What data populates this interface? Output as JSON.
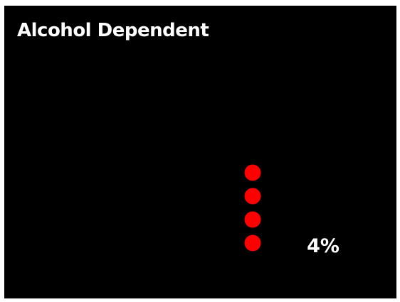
{
  "slide": {
    "title": "Alcohol Dependent",
    "background_color": "#000000",
    "text_color": "#ffffff"
  },
  "chart_data": {
    "type": "dot",
    "title": "Alcohol Dependent",
    "categories": [
      "Alcohol Dependent"
    ],
    "values": [
      4
    ],
    "unit": "%",
    "value_label": "4%",
    "dot_count": 4,
    "dot_color": "#ff0000"
  }
}
